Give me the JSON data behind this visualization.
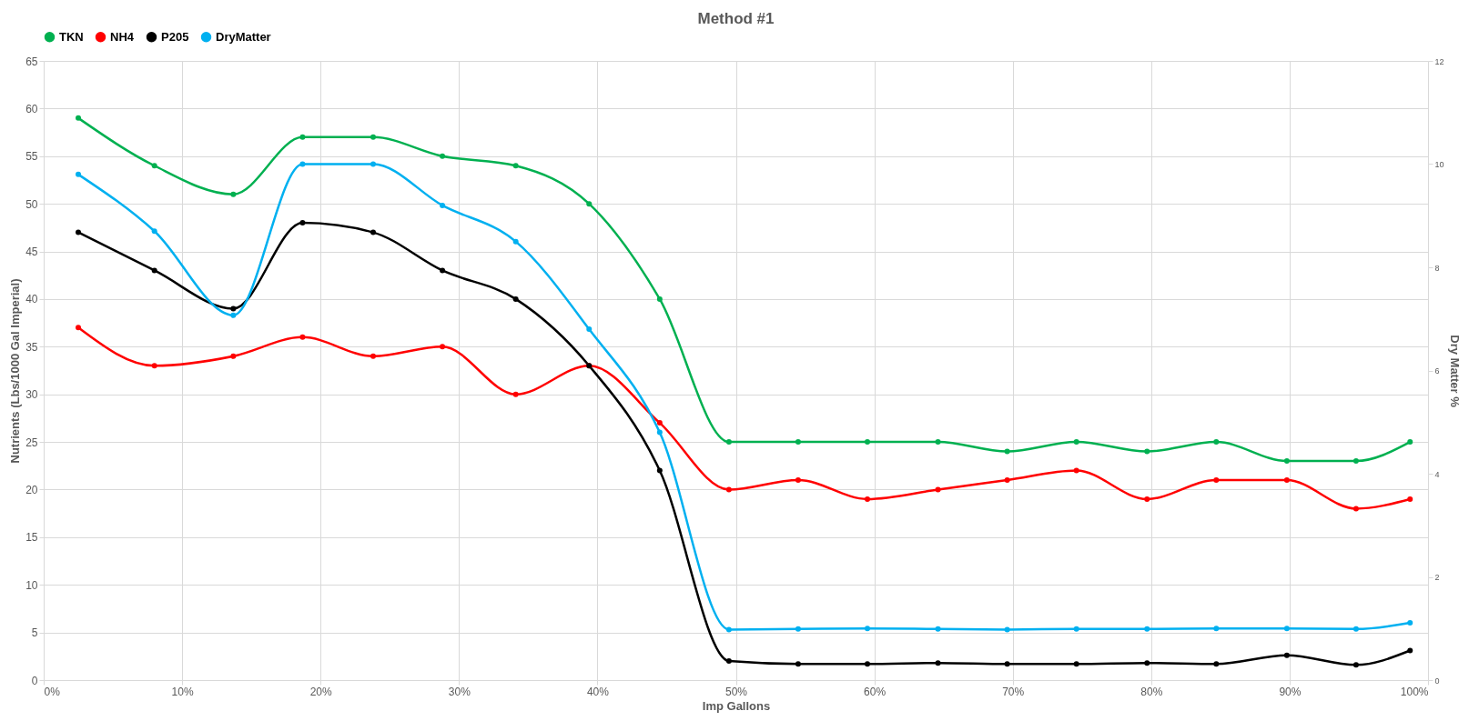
{
  "chart_data": {
    "type": "line",
    "title": "Method #1",
    "xlabel": "Imp Gallons",
    "ylabel": "Nutrients (Lbs/1000 Gal Imperial)",
    "y2label": "Dry Matter %",
    "x": [
      2.5,
      8.0,
      13.7,
      18.7,
      23.8,
      28.8,
      34.1,
      39.4,
      44.5,
      49.5,
      54.5,
      59.5,
      64.6,
      69.6,
      74.6,
      79.7,
      84.7,
      89.8,
      94.8,
      98.7
    ],
    "series": [
      {
        "name": "TKN",
        "color": "#00b050",
        "values": [
          59,
          54,
          51,
          57,
          57,
          55,
          54,
          50,
          40,
          25,
          25,
          25,
          25,
          24,
          25,
          24,
          25,
          23,
          23,
          25
        ]
      },
      {
        "name": "NH4",
        "color": "#ff0000",
        "values": [
          37,
          33,
          34,
          36,
          34,
          35,
          30,
          33,
          27,
          20,
          21,
          19,
          20,
          21,
          22,
          19,
          21,
          21,
          18,
          19
        ]
      },
      {
        "name": "P205",
        "color": "#000000",
        "values": [
          47,
          43,
          39,
          48,
          47,
          43,
          40,
          33,
          22,
          2.0,
          1.7,
          1.7,
          1.8,
          1.7,
          1.7,
          1.8,
          1.7,
          2.6,
          1.6,
          3.1
        ]
      },
      {
        "name": "DryMatter",
        "color": "#00b0f0",
        "axis": "y2",
        "values": [
          9.8,
          8.7,
          7.07,
          10.0,
          10.0,
          9.2,
          8.5,
          6.8,
          4.8,
          0.98,
          0.99,
          1.0,
          0.99,
          0.98,
          0.99,
          0.99,
          1.0,
          1.0,
          0.99,
          1.11
        ]
      }
    ],
    "xlim": [
      0,
      100
    ],
    "xticks": [
      {
        "value": 0,
        "label": "0%"
      },
      {
        "value": 10,
        "label": "10%"
      },
      {
        "value": 20,
        "label": "20%"
      },
      {
        "value": 30,
        "label": "30%"
      },
      {
        "value": 40,
        "label": "40%"
      },
      {
        "value": 50,
        "label": "50%"
      },
      {
        "value": 60,
        "label": "60%"
      },
      {
        "value": 70,
        "label": "70%"
      },
      {
        "value": 80,
        "label": "80%"
      },
      {
        "value": 90,
        "label": "90%"
      },
      {
        "value": 100,
        "label": "100%"
      }
    ],
    "ylim": [
      0,
      65
    ],
    "yticks": [
      0,
      5,
      10,
      15,
      20,
      25,
      30,
      35,
      40,
      45,
      50,
      55,
      60,
      65
    ],
    "y2lim": [
      0,
      12
    ],
    "y2ticks": [
      0,
      2,
      4,
      6,
      8,
      10,
      12
    ],
    "grid": true,
    "legend": "top",
    "marker": "circle",
    "line_style": "solid"
  }
}
